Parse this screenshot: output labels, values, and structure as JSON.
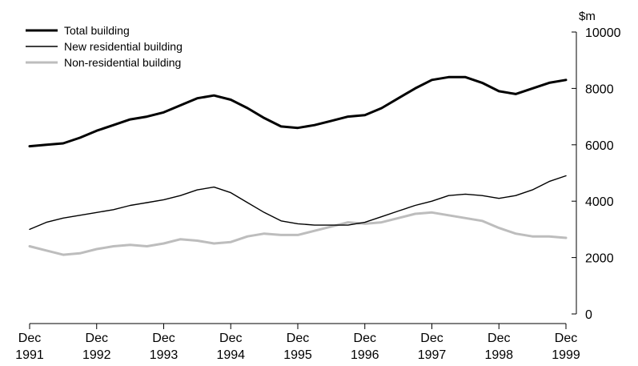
{
  "chart_data": {
    "type": "line",
    "title": "",
    "xlabel": "",
    "ylabel": "$m",
    "ylim": [
      0,
      10000
    ],
    "yticks": [
      0,
      2000,
      4000,
      6000,
      8000,
      10000
    ],
    "grid": false,
    "legend_position": "top-left",
    "x_ticks": [
      {
        "month": "Dec",
        "year": "1991"
      },
      {
        "month": "Dec",
        "year": "1992"
      },
      {
        "month": "Dec",
        "year": "1993"
      },
      {
        "month": "Dec",
        "year": "1994"
      },
      {
        "month": "Dec",
        "year": "1995"
      },
      {
        "month": "Dec",
        "year": "1996"
      },
      {
        "month": "Dec",
        "year": "1997"
      },
      {
        "month": "Dec",
        "year": "1998"
      },
      {
        "month": "Dec",
        "year": "1999"
      }
    ],
    "x": [
      "Dec 1991",
      "Mar 1992",
      "Jun 1992",
      "Sep 1992",
      "Dec 1992",
      "Mar 1993",
      "Jun 1993",
      "Sep 1993",
      "Dec 1993",
      "Mar 1994",
      "Jun 1994",
      "Sep 1994",
      "Dec 1994",
      "Mar 1995",
      "Jun 1995",
      "Sep 1995",
      "Dec 1995",
      "Mar 1996",
      "Jun 1996",
      "Sep 1996",
      "Dec 1996",
      "Mar 1997",
      "Jun 1997",
      "Sep 1997",
      "Dec 1997",
      "Mar 1998",
      "Jun 1998",
      "Sep 1998",
      "Dec 1998",
      "Mar 1999",
      "Jun 1999",
      "Sep 1999",
      "Dec 1999"
    ],
    "series": [
      {
        "name": "Total building",
        "color": "#000000",
        "width": 3,
        "values": [
          5950,
          6000,
          6050,
          6250,
          6500,
          6700,
          6900,
          7000,
          7150,
          7400,
          7650,
          7750,
          7600,
          7300,
          6950,
          6650,
          6600,
          6700,
          6850,
          7000,
          7050,
          7300,
          7650,
          8000,
          8300,
          8400,
          8400,
          8200,
          7900,
          7800,
          8000,
          8200,
          8300
        ]
      },
      {
        "name": "New residential building",
        "color": "#000000",
        "width": 1.4,
        "values": [
          3000,
          3250,
          3400,
          3500,
          3600,
          3700,
          3850,
          3950,
          4050,
          4200,
          4400,
          4500,
          4300,
          3950,
          3600,
          3300,
          3200,
          3150,
          3150,
          3150,
          3250,
          3450,
          3650,
          3850,
          4000,
          4200,
          4250,
          4200,
          4100,
          4200,
          4400,
          4700,
          4900
        ]
      },
      {
        "name": "Non-residential building",
        "color": "#bdbdbd",
        "width": 3,
        "values": [
          2400,
          2250,
          2100,
          2150,
          2300,
          2400,
          2450,
          2400,
          2500,
          2650,
          2600,
          2500,
          2550,
          2750,
          2850,
          2800,
          2800,
          2950,
          3100,
          3250,
          3200,
          3250,
          3400,
          3550,
          3600,
          3500,
          3400,
          3300,
          3050,
          2850,
          2750,
          2750,
          2700
        ]
      }
    ]
  }
}
